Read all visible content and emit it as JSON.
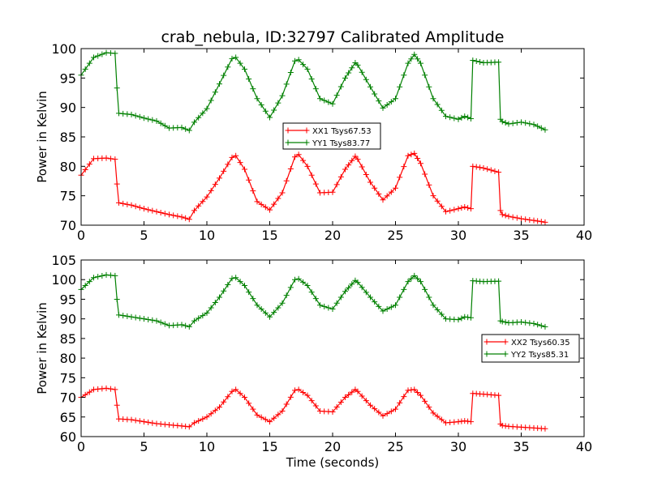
{
  "chart_data": [
    {
      "type": "line",
      "title": "crab_nebula, ID:32797 Calibrated Amplitude",
      "xlabel": "",
      "ylabel": "Power in Kelvin",
      "xlim": [
        0,
        40
      ],
      "ylim": [
        70,
        100
      ],
      "xticks": [
        "0",
        "5",
        "10",
        "15",
        "20",
        "25",
        "30",
        "35",
        "40"
      ],
      "yticks": [
        "70",
        "75",
        "80",
        "85",
        "90",
        "95",
        "100"
      ],
      "grid": false,
      "legend_position": "center",
      "marker": "+",
      "series": [
        {
          "name": "XX1 Tsys67.53",
          "color": "#ff0000",
          "x": [
            0,
            1,
            2,
            2.7,
            2.85,
            3.0,
            4,
            5,
            6,
            7,
            8,
            8.6,
            9,
            10,
            11,
            12,
            12.3,
            13,
            14,
            15,
            16,
            17,
            17.3,
            18,
            19,
            20,
            21,
            21.8,
            22,
            23,
            24,
            25,
            26,
            26.5,
            27,
            28,
            29,
            30,
            30.5,
            31.0,
            31.15,
            32,
            33.2,
            33.35,
            33.5,
            34,
            35,
            36,
            36.9
          ],
          "values": [
            78.5,
            81.3,
            81.4,
            81.2,
            77,
            73.8,
            73.4,
            72.8,
            72.3,
            71.8,
            71.4,
            71,
            72.5,
            74.8,
            78,
            81.5,
            81.8,
            79.5,
            74,
            72.6,
            75.5,
            81.6,
            82,
            80,
            75.5,
            75.6,
            79.5,
            81.7,
            81.2,
            77.3,
            74.3,
            76.3,
            81.8,
            82.2,
            80.5,
            75,
            72.3,
            72.8,
            73.1,
            72.8,
            80,
            79.7,
            79,
            72.5,
            71.8,
            71.5,
            71.1,
            70.8,
            70.5
          ]
        },
        {
          "name": "YY1 Tsys83.77",
          "color": "#008000",
          "x": [
            0,
            1,
            2,
            2.7,
            2.85,
            3.0,
            4,
            5,
            6,
            7,
            8,
            8.6,
            9,
            10,
            11,
            12,
            12.3,
            13,
            14,
            15,
            16,
            17,
            17.3,
            18,
            19,
            20,
            21,
            21.8,
            22,
            23,
            24,
            25,
            26,
            26.5,
            27,
            28,
            29,
            30,
            30.5,
            31.0,
            31.15,
            32,
            33.2,
            33.35,
            33.5,
            34,
            35,
            36,
            36.9
          ],
          "values": [
            95.5,
            98.5,
            99.3,
            99.2,
            93.3,
            89,
            88.8,
            88.2,
            87.7,
            86.5,
            86.6,
            86.1,
            87.5,
            89.8,
            94,
            98.3,
            98.5,
            96.5,
            91.5,
            88.3,
            92,
            97.9,
            98.1,
            96.5,
            91.5,
            90.6,
            95,
            97.6,
            97.2,
            93.5,
            89.9,
            91.5,
            97.5,
            99,
            97.5,
            91.5,
            88.5,
            88,
            88.5,
            88.1,
            98,
            97.6,
            97.7,
            88,
            87.6,
            87.2,
            87.5,
            87.1,
            86.2
          ]
        }
      ]
    },
    {
      "type": "line",
      "title": "",
      "xlabel": "Time (seconds)",
      "ylabel": "Power in Kelvin",
      "xlim": [
        0,
        40
      ],
      "ylim": [
        60,
        105
      ],
      "xticks": [
        "0",
        "5",
        "10",
        "15",
        "20",
        "25",
        "30",
        "35",
        "40"
      ],
      "yticks": [
        "60",
        "65",
        "70",
        "75",
        "80",
        "85",
        "90",
        "95",
        "100",
        "105"
      ],
      "grid": false,
      "legend_position": "center-right",
      "marker": "+",
      "series": [
        {
          "name": "XX2 Tsys60.35",
          "color": "#ff0000",
          "x": [
            0,
            1,
            2,
            2.7,
            2.85,
            3.0,
            4,
            5,
            6,
            7,
            8,
            8.6,
            9,
            10,
            11,
            12,
            12.3,
            13,
            14,
            15,
            16,
            17,
            17.3,
            18,
            19,
            20,
            21,
            21.8,
            22,
            23,
            24,
            25,
            26,
            26.5,
            27,
            28,
            29,
            30,
            30.5,
            31.0,
            31.15,
            32,
            33.2,
            33.35,
            33.5,
            34,
            35,
            36,
            36.9
          ],
          "values": [
            70,
            72,
            72.3,
            72,
            68,
            64.5,
            64.3,
            63.8,
            63.3,
            63,
            62.7,
            62.5,
            63.5,
            65,
            67.5,
            71.5,
            72,
            70,
            65.5,
            63.8,
            66.5,
            71.8,
            72,
            70.5,
            66.5,
            66.3,
            70,
            72,
            71.5,
            68,
            65.3,
            67,
            71.8,
            72,
            70.5,
            66,
            63.5,
            63.8,
            64,
            63.8,
            71,
            70.8,
            70.5,
            63.2,
            62.8,
            62.6,
            62.4,
            62.2,
            62
          ]
        },
        {
          "name": "YY2 Tsys85.31",
          "color": "#008000",
          "x": [
            0,
            1,
            2,
            2.7,
            2.85,
            3.0,
            4,
            5,
            6,
            7,
            8,
            8.6,
            9,
            10,
            11,
            12,
            12.3,
            13,
            14,
            15,
            16,
            17,
            17.3,
            18,
            19,
            20,
            21,
            21.8,
            22,
            23,
            24,
            25,
            26,
            26.5,
            27,
            28,
            29,
            30,
            30.5,
            31.0,
            31.15,
            32,
            33.2,
            33.35,
            33.5,
            34,
            35,
            36,
            36.9
          ],
          "values": [
            97.5,
            100.5,
            101.2,
            101,
            95,
            91,
            90.5,
            90,
            89.5,
            88.3,
            88.5,
            88,
            89.5,
            91.5,
            95.5,
            100.3,
            100.5,
            98.5,
            93.5,
            90.5,
            94,
            100,
            100.2,
            98.5,
            93.5,
            92.5,
            97,
            99.8,
            99.3,
            95.5,
            92,
            93.5,
            99.5,
            101,
            99.5,
            93.5,
            90,
            89.8,
            90.5,
            90.3,
            99.7,
            99.5,
            99.6,
            89.5,
            89.3,
            89,
            89.2,
            88.8,
            88
          ]
        }
      ]
    }
  ]
}
